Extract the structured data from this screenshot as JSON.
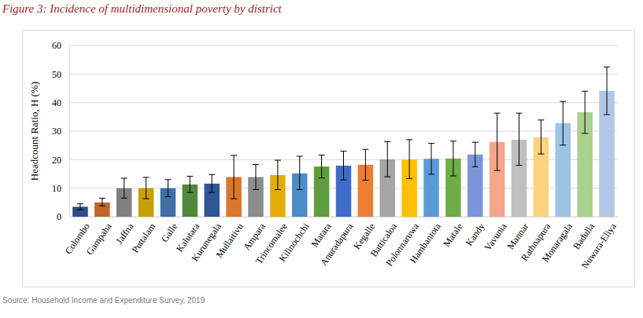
{
  "chart_data": {
    "type": "bar",
    "title": "Figure 3: Incidence of multidimensional poverty by district",
    "y_label": "Headcount Ratio, H (%)",
    "source": "Source: Household Income and Expenditure Survey, 2019",
    "categories": [
      "Colombo",
      "Gampaha",
      "Jaffna",
      "Puttalam",
      "Galle",
      "Kalutara",
      "Kurunegala",
      "Mullaitivu",
      "Ampara",
      "Trincomalee",
      "Kilinochchi",
      "Matara",
      "Anuradapura",
      "Kegalle",
      "Batticaloa",
      "Polonnaruwa",
      "Hambantota",
      "Matale",
      "Kandy",
      "Vavunia",
      "Mannar",
      "Rathnapura",
      "Monaragala",
      "Badulla",
      "Nuwara-Eliya"
    ],
    "values": [
      3.5,
      5.0,
      10.0,
      10.0,
      10.0,
      11.3,
      11.6,
      13.9,
      13.9,
      14.6,
      15.2,
      17.6,
      17.9,
      18.2,
      20.1,
      20.1,
      20.3,
      20.4,
      21.8,
      26.2,
      27.0,
      27.9,
      32.8,
      36.6,
      44.1
    ],
    "error_minus": [
      1.0,
      1.2,
      3.5,
      3.7,
      3.0,
      2.8,
      3.1,
      7.6,
      4.4,
      5.1,
      5.7,
      4.0,
      5.0,
      5.4,
      6.1,
      6.7,
      5.4,
      6.1,
      4.3,
      10.0,
      9.0,
      5.9,
      7.7,
      7.4,
      8.3
    ],
    "error_plus": [
      1.0,
      1.5,
      3.5,
      3.8,
      3.0,
      2.9,
      3.2,
      7.6,
      4.4,
      5.2,
      6.0,
      4.0,
      5.1,
      5.4,
      6.2,
      6.9,
      5.4,
      6.1,
      4.3,
      10.1,
      9.3,
      6.0,
      7.6,
      7.4,
      8.4
    ],
    "colors": [
      "#2e4d8c",
      "#c0662a",
      "#808080",
      "#c8a000",
      "#3f6ea8",
      "#4e8a3a",
      "#2f5597",
      "#d9772c",
      "#8c8c8c",
      "#e3ac0a",
      "#4d8cc8",
      "#5e9e3f",
      "#3f6cc8",
      "#ed7d31",
      "#a5a5a5",
      "#ffc000",
      "#5b9bd5",
      "#70ad47",
      "#7b96d8",
      "#f4a58a",
      "#bfbfbf",
      "#ffd280",
      "#9dc3e6",
      "#a9d18e",
      "#b4c6e7"
    ],
    "ylim": [
      0,
      60
    ],
    "yticks": [
      0,
      10,
      20,
      30,
      40,
      50,
      60
    ],
    "grid": true
  }
}
